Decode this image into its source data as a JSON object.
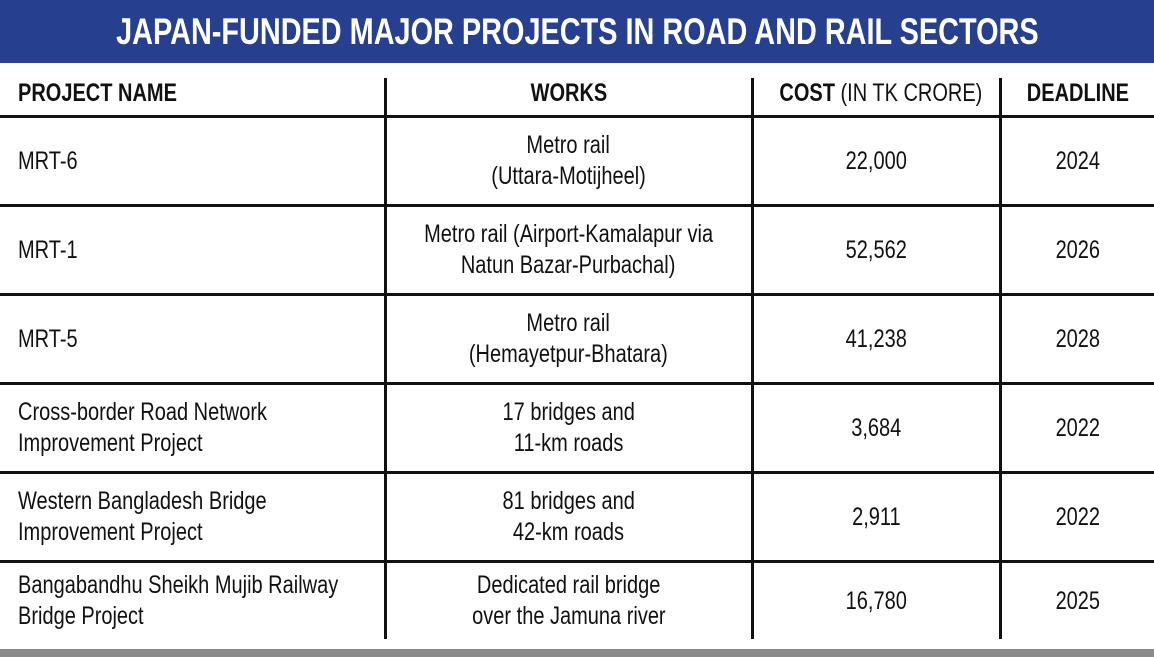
{
  "title": "JAPAN-FUNDED MAJOR PROJECTS IN ROAD AND RAIL SECTORS",
  "colors": {
    "title_bar": "#263f8e",
    "bottom_bar": "#8a8a8a"
  },
  "chart_data": {
    "type": "table",
    "title": "JAPAN-FUNDED MAJOR PROJECTS IN ROAD AND RAIL SECTORS",
    "columns": [
      {
        "label": "PROJECT NAME",
        "sub": ""
      },
      {
        "label": "WORKS",
        "sub": ""
      },
      {
        "label": "COST",
        "sub": " (IN TK CRORE)"
      },
      {
        "label": "DEADLINE",
        "sub": ""
      }
    ],
    "rows": [
      {
        "name": [
          "MRT-6",
          ""
        ],
        "works": [
          "Metro rail",
          "(Uttara-Motijheel)"
        ],
        "cost": "22,000",
        "deadline": "2024"
      },
      {
        "name": [
          "MRT-1",
          ""
        ],
        "works": [
          "Metro rail (Airport-Kamalapur via",
          "Natun Bazar-Purbachal)"
        ],
        "cost": "52,562",
        "deadline": "2026"
      },
      {
        "name": [
          "MRT-5",
          ""
        ],
        "works": [
          "Metro rail",
          "(Hemayetpur-Bhatara)"
        ],
        "cost": "41,238",
        "deadline": "2028"
      },
      {
        "name": [
          "Cross-border Road Network",
          "Improvement Project"
        ],
        "works": [
          "17 bridges and",
          "11-km roads"
        ],
        "cost": "3,684",
        "deadline": "2022"
      },
      {
        "name": [
          "Western Bangladesh Bridge",
          "Improvement Project"
        ],
        "works": [
          "81 bridges  and",
          "42-km roads"
        ],
        "cost": "2,911",
        "deadline": "2022"
      },
      {
        "name": [
          "Bangabandhu Sheikh Mujib Railway",
          "Bridge Project"
        ],
        "works": [
          "Dedicated rail bridge",
          "over the Jamuna river"
        ],
        "cost": "16,780",
        "deadline": "2025"
      }
    ]
  }
}
